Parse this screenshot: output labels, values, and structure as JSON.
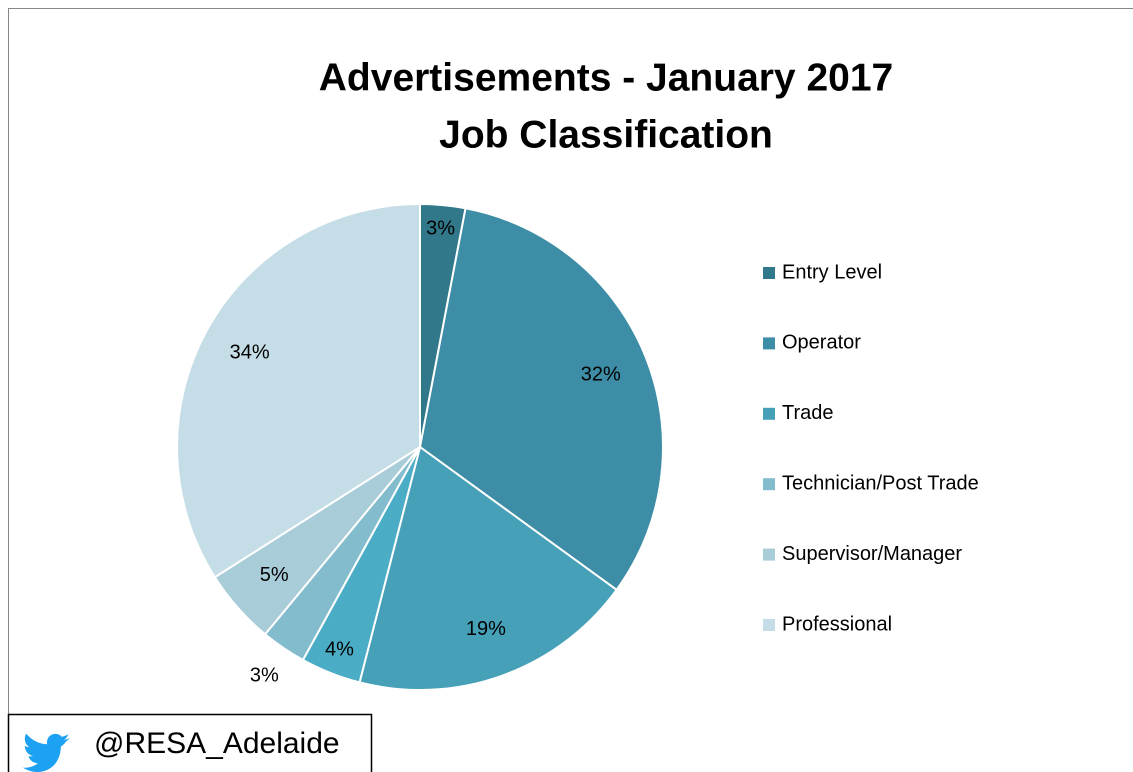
{
  "chart_data": {
    "type": "pie",
    "title": [
      "Advertisements - January 2017",
      "Job Classification"
    ],
    "categories": [
      "Entry Level",
      "Operator",
      "Trade",
      null,
      "Technician/Post Trade",
      "Supervisor/Manager",
      "Professional"
    ],
    "values": [
      3,
      32,
      19,
      4,
      3,
      5,
      34
    ],
    "value_labels": [
      "3%",
      "32%",
      "19%",
      "4%",
      "3%",
      "5%",
      "34%"
    ],
    "colors": [
      "#31788a",
      "#3d8da6",
      "#46a0b8",
      "#4bacc6",
      "#83bccc",
      "#a9ccd9",
      "#c5dde6"
    ],
    "legend": "right"
  },
  "footer": {
    "handle": "@RESA_Adelaide"
  }
}
